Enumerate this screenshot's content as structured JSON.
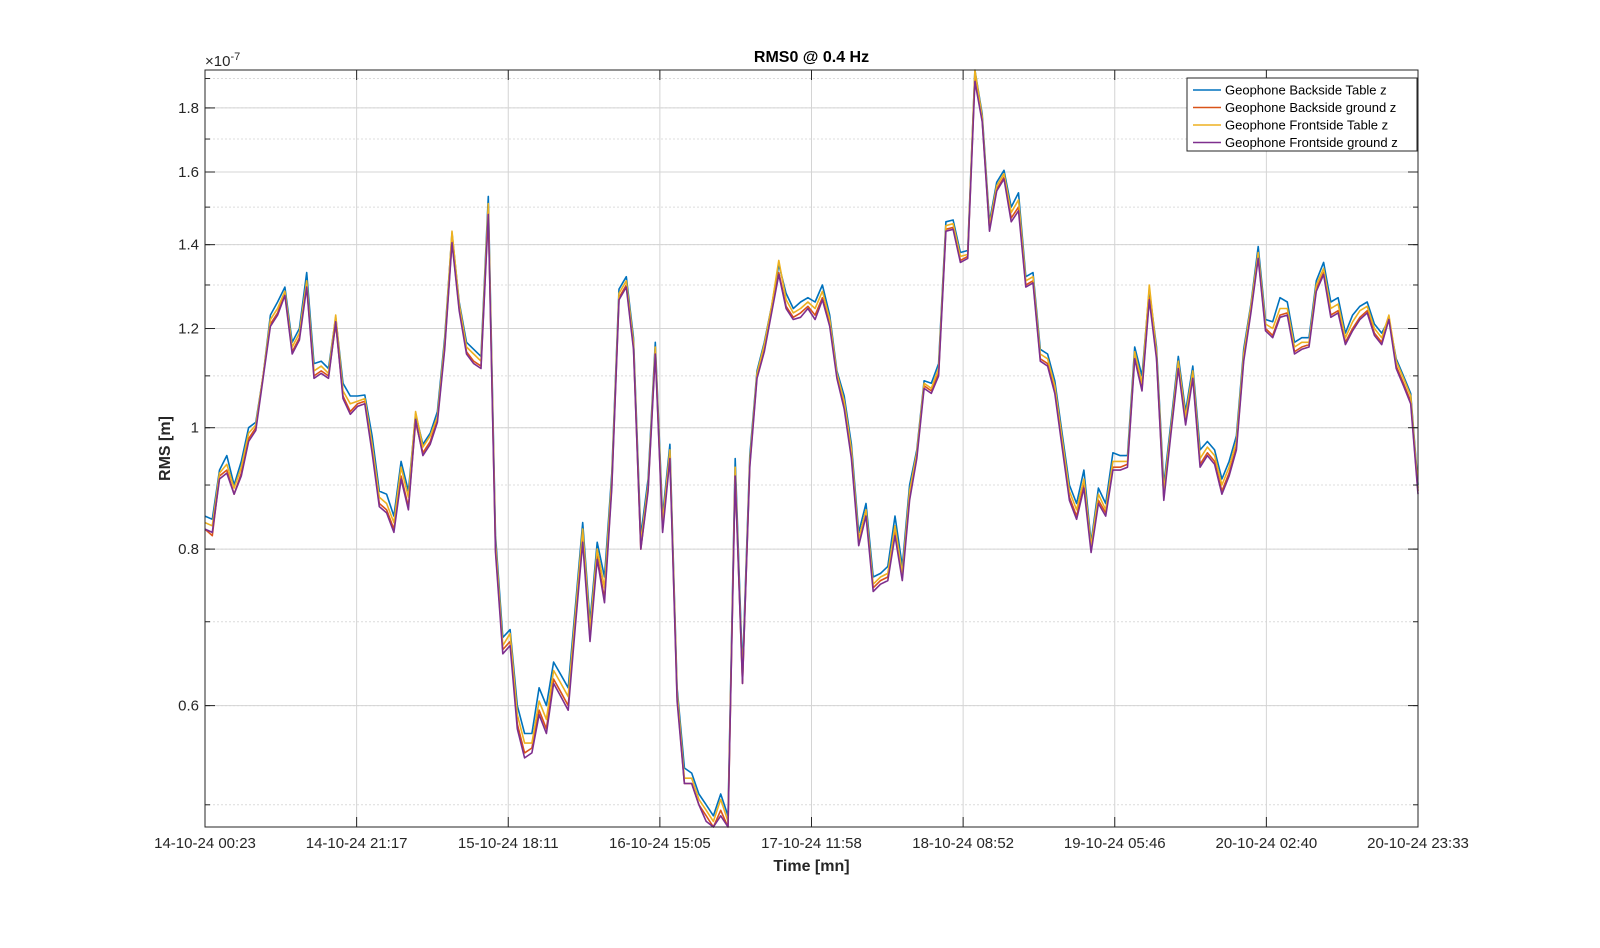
{
  "chart_data": {
    "type": "line",
    "title": "RMS0 @ 0.4 Hz",
    "xlabel": "Time [mn]",
    "ylabel": "RMS [m]",
    "y_scale": "log",
    "y_multiplier": "×10",
    "y_exponent": "-7",
    "ylim": [
      0.48,
      1.93
    ],
    "y_ticks": [
      {
        "value": 0.6,
        "label": "0.6"
      },
      {
        "value": 0.8,
        "label": "0.8"
      },
      {
        "value": 1.0,
        "label": "1"
      },
      {
        "value": 1.2,
        "label": "1.2"
      },
      {
        "value": 1.4,
        "label": "1.4"
      },
      {
        "value": 1.6,
        "label": "1.6"
      },
      {
        "value": 1.8,
        "label": "1.8"
      }
    ],
    "x_ticks": [
      "14-10-24 00:23",
      "14-10-24 21:17",
      "15-10-24 18:11",
      "16-10-24 15:05",
      "17-10-24 11:58",
      "18-10-24 08:52",
      "19-10-24 05:46",
      "20-10-24 02:40",
      "20-10-24 23:33"
    ],
    "grid": true,
    "legend_position": "top-right",
    "series": [
      {
        "name": "Geophone Backside Table z",
        "color": "#0072BD",
        "values": [
          0.85,
          0.845,
          0.925,
          0.95,
          0.9,
          0.94,
          1.0,
          1.01,
          1.1,
          1.23,
          1.26,
          1.295,
          1.17,
          1.2,
          1.33,
          1.125,
          1.13,
          1.115,
          1.225,
          1.085,
          1.06,
          1.06,
          1.062,
          0.985,
          0.89,
          0.885,
          0.85,
          0.94,
          0.89,
          1.025,
          0.97,
          0.99,
          1.03,
          1.18,
          1.43,
          1.26,
          1.17,
          1.155,
          1.14,
          1.53,
          0.82,
          0.68,
          0.69,
          0.6,
          0.57,
          0.57,
          0.62,
          0.6,
          0.65,
          0.635,
          0.62,
          0.72,
          0.84,
          0.7,
          0.81,
          0.76,
          0.92,
          1.29,
          1.32,
          1.18,
          0.82,
          0.91,
          1.17,
          0.85,
          0.97,
          0.62,
          0.535,
          0.53,
          0.51,
          0.5,
          0.49,
          0.51,
          0.49,
          0.945,
          0.64,
          0.95,
          1.11,
          1.17,
          1.25,
          1.35,
          1.28,
          1.245,
          1.26,
          1.27,
          1.26,
          1.3,
          1.23,
          1.11,
          1.06,
          0.97,
          0.825,
          0.87,
          0.76,
          0.765,
          0.775,
          0.85,
          0.775,
          0.9,
          0.96,
          1.09,
          1.085,
          1.125,
          1.46,
          1.465,
          1.38,
          1.385,
          1.93,
          1.78,
          1.46,
          1.57,
          1.605,
          1.5,
          1.54,
          1.32,
          1.33,
          1.155,
          1.145,
          1.09,
          0.99,
          0.9,
          0.87,
          0.925,
          0.81,
          0.895,
          0.87,
          0.955,
          0.95,
          0.95,
          1.16,
          1.1,
          1.29,
          1.16,
          0.9,
          1.01,
          1.14,
          1.03,
          1.12,
          0.96,
          0.975,
          0.96,
          0.91,
          0.94,
          0.985,
          1.155,
          1.255,
          1.395,
          1.22,
          1.215,
          1.27,
          1.26,
          1.17,
          1.18,
          1.18,
          1.31,
          1.355,
          1.26,
          1.27,
          1.19,
          1.23,
          1.25,
          1.26,
          1.21,
          1.19,
          1.22,
          1.135,
          1.1,
          1.065,
          0.9
        ]
      },
      {
        "name": "Geophone Backside ground z",
        "color": "#D95319",
        "values": [
          0.83,
          0.82,
          0.915,
          0.925,
          0.885,
          0.92,
          0.98,
          1.0,
          1.1,
          1.21,
          1.235,
          1.28,
          1.15,
          1.18,
          1.3,
          1.1,
          1.11,
          1.1,
          1.21,
          1.06,
          1.03,
          1.045,
          1.05,
          0.96,
          0.87,
          0.86,
          0.83,
          0.915,
          0.865,
          1.01,
          0.955,
          0.975,
          1.015,
          1.16,
          1.41,
          1.245,
          1.15,
          1.13,
          1.12,
          1.49,
          0.8,
          0.665,
          0.675,
          0.58,
          0.55,
          0.555,
          0.595,
          0.575,
          0.63,
          0.615,
          0.6,
          0.7,
          0.815,
          0.68,
          0.79,
          0.73,
          0.9,
          1.27,
          1.3,
          1.16,
          0.8,
          0.895,
          1.15,
          0.83,
          0.95,
          0.61,
          0.52,
          0.52,
          0.5,
          0.49,
          0.48,
          0.495,
          0.48,
          0.92,
          0.625,
          0.935,
          1.1,
          1.155,
          1.24,
          1.33,
          1.25,
          1.225,
          1.235,
          1.25,
          1.23,
          1.27,
          1.21,
          1.1,
          1.04,
          0.95,
          0.81,
          0.855,
          0.745,
          0.755,
          0.76,
          0.825,
          0.76,
          0.88,
          0.95,
          1.08,
          1.07,
          1.105,
          1.44,
          1.445,
          1.36,
          1.37,
          1.9,
          1.76,
          1.44,
          1.55,
          1.585,
          1.47,
          1.5,
          1.3,
          1.31,
          1.135,
          1.125,
          1.07,
          0.97,
          0.88,
          0.85,
          0.9,
          0.8,
          0.875,
          0.855,
          0.93,
          0.93,
          0.935,
          1.14,
          1.075,
          1.27,
          1.14,
          0.88,
          0.995,
          1.12,
          1.01,
          1.1,
          0.935,
          0.955,
          0.94,
          0.89,
          0.92,
          0.965,
          1.135,
          1.24,
          1.37,
          1.2,
          1.185,
          1.23,
          1.235,
          1.15,
          1.16,
          1.165,
          1.29,
          1.33,
          1.23,
          1.24,
          1.17,
          1.2,
          1.225,
          1.24,
          1.19,
          1.17,
          1.225,
          1.12,
          1.085,
          1.05,
          0.89
        ]
      },
      {
        "name": "Geophone Frontside Table z",
        "color": "#EDB120",
        "values": [
          0.84,
          0.835,
          0.92,
          0.935,
          0.895,
          0.93,
          0.99,
          1.005,
          1.1,
          1.22,
          1.245,
          1.285,
          1.16,
          1.19,
          1.31,
          1.11,
          1.12,
          1.105,
          1.23,
          1.07,
          1.045,
          1.05,
          1.055,
          0.97,
          0.88,
          0.87,
          0.84,
          0.93,
          0.88,
          1.03,
          0.965,
          0.985,
          1.02,
          1.17,
          1.435,
          1.255,
          1.16,
          1.145,
          1.13,
          1.51,
          0.81,
          0.67,
          0.685,
          0.59,
          0.56,
          0.56,
          0.605,
          0.585,
          0.64,
          0.625,
          0.61,
          0.71,
          0.83,
          0.69,
          0.8,
          0.745,
          0.91,
          1.28,
          1.31,
          1.17,
          0.81,
          0.9,
          1.16,
          0.84,
          0.96,
          0.615,
          0.525,
          0.525,
          0.505,
          0.495,
          0.485,
          0.505,
          0.485,
          0.93,
          0.63,
          0.94,
          1.105,
          1.165,
          1.25,
          1.36,
          1.265,
          1.235,
          1.245,
          1.26,
          1.245,
          1.285,
          1.22,
          1.105,
          1.05,
          0.96,
          0.815,
          0.86,
          0.75,
          0.76,
          0.765,
          0.835,
          0.765,
          0.89,
          0.955,
          1.085,
          1.075,
          1.115,
          1.45,
          1.455,
          1.37,
          1.375,
          1.935,
          1.77,
          1.45,
          1.56,
          1.595,
          1.485,
          1.52,
          1.31,
          1.32,
          1.145,
          1.135,
          1.08,
          0.98,
          0.89,
          0.86,
          0.91,
          0.805,
          0.885,
          0.86,
          0.94,
          0.94,
          0.94,
          1.15,
          1.085,
          1.3,
          1.15,
          0.89,
          1.0,
          1.13,
          1.02,
          1.11,
          0.945,
          0.965,
          0.95,
          0.9,
          0.93,
          0.975,
          1.145,
          1.25,
          1.38,
          1.21,
          1.2,
          1.245,
          1.245,
          1.16,
          1.17,
          1.17,
          1.3,
          1.34,
          1.245,
          1.255,
          1.18,
          1.215,
          1.24,
          1.25,
          1.2,
          1.18,
          1.23,
          1.13,
          1.095,
          1.06,
          0.895
        ]
      },
      {
        "name": "Geophone Frontside ground z",
        "color": "#7E2F8E",
        "values": [
          0.83,
          0.825,
          0.91,
          0.92,
          0.885,
          0.915,
          0.975,
          0.995,
          1.095,
          1.205,
          1.23,
          1.275,
          1.145,
          1.175,
          1.295,
          1.095,
          1.105,
          1.095,
          1.215,
          1.055,
          1.025,
          1.04,
          1.045,
          0.955,
          0.865,
          0.855,
          0.825,
          0.91,
          0.86,
          1.015,
          0.95,
          0.97,
          1.01,
          1.155,
          1.405,
          1.24,
          1.145,
          1.125,
          1.115,
          1.48,
          0.795,
          0.66,
          0.67,
          0.575,
          0.545,
          0.55,
          0.59,
          0.57,
          0.625,
          0.61,
          0.595,
          0.695,
          0.81,
          0.675,
          0.785,
          0.725,
          0.895,
          1.265,
          1.295,
          1.155,
          0.8,
          0.89,
          1.145,
          0.825,
          0.945,
          0.605,
          0.52,
          0.52,
          0.5,
          0.485,
          0.475,
          0.49,
          0.475,
          0.915,
          0.625,
          0.93,
          1.095,
          1.15,
          1.235,
          1.325,
          1.245,
          1.22,
          1.225,
          1.245,
          1.22,
          1.265,
          1.205,
          1.095,
          1.035,
          0.945,
          0.805,
          0.85,
          0.74,
          0.75,
          0.755,
          0.82,
          0.755,
          0.875,
          0.945,
          1.075,
          1.065,
          1.1,
          1.435,
          1.44,
          1.355,
          1.365,
          1.89,
          1.755,
          1.435,
          1.545,
          1.58,
          1.46,
          1.49,
          1.295,
          1.305,
          1.13,
          1.12,
          1.065,
          0.965,
          0.875,
          0.845,
          0.895,
          0.795,
          0.87,
          0.85,
          0.925,
          0.925,
          0.93,
          1.135,
          1.07,
          1.265,
          1.135,
          0.875,
          0.99,
          1.115,
          1.005,
          1.095,
          0.93,
          0.95,
          0.935,
          0.885,
          0.915,
          0.96,
          1.13,
          1.235,
          1.365,
          1.195,
          1.18,
          1.225,
          1.23,
          1.145,
          1.155,
          1.16,
          1.285,
          1.325,
          1.225,
          1.235,
          1.165,
          1.195,
          1.22,
          1.235,
          1.185,
          1.165,
          1.22,
          1.115,
          1.08,
          1.045,
          0.885
        ]
      }
    ]
  }
}
